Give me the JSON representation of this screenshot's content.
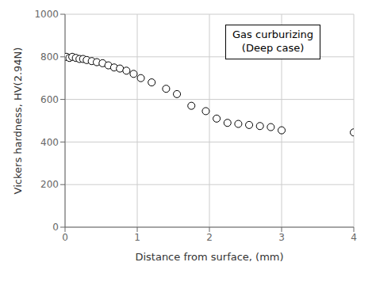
{
  "chart_data": {
    "type": "scatter",
    "x": [
      0.02,
      0.06,
      0.1,
      0.15,
      0.2,
      0.25,
      0.3,
      0.37,
      0.44,
      0.52,
      0.6,
      0.68,
      0.76,
      0.85,
      0.95,
      1.05,
      1.2,
      1.4,
      1.55,
      1.75,
      1.95,
      2.1,
      2.25,
      2.4,
      2.55,
      2.7,
      2.85,
      3.0,
      4.0
    ],
    "values": [
      800,
      795,
      800,
      795,
      790,
      790,
      785,
      780,
      775,
      770,
      760,
      750,
      745,
      735,
      720,
      700,
      680,
      650,
      625,
      570,
      545,
      510,
      490,
      485,
      480,
      475,
      470,
      455,
      445
    ],
    "xlabel": "Distance from surface,  (mm)",
    "ylabel": "Vickers hardness,  HV(2.94N)",
    "annotations": [
      "Gas curburizing",
      "(Deep case)"
    ],
    "xlim": [
      0,
      4
    ],
    "ylim": [
      0,
      1000
    ],
    "xticks": [
      0,
      1,
      2,
      3,
      4
    ],
    "yticks": [
      0,
      200,
      400,
      600,
      800,
      1000
    ],
    "marker": "circle",
    "color": "black",
    "grid": true
  }
}
